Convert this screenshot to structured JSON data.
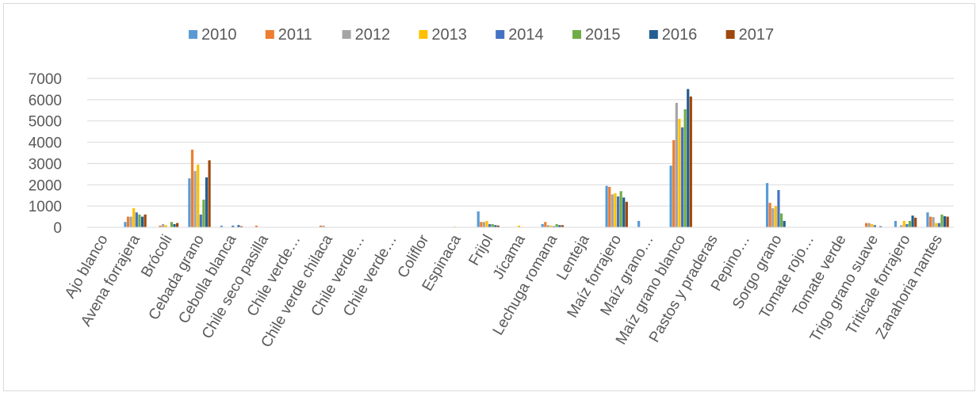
{
  "chart_data": {
    "type": "bar",
    "title": "",
    "xlabel": "",
    "ylabel": "",
    "ylim": [
      0,
      7000
    ],
    "yticks": [
      0,
      1000,
      2000,
      3000,
      4000,
      5000,
      6000,
      7000
    ],
    "grid": true,
    "legend_position": "top",
    "categories": [
      "Ajo blanco",
      "Avena forrajera",
      "Brócoli",
      "Cebada grano",
      "Cebolla blanca",
      "Chile seco pasilla",
      "Chile verde…",
      "Chile verde chilaca",
      "Chile verde…",
      "Chile verde…",
      "Coliflor",
      "Espinaca",
      "Frijol",
      "Jícama",
      "Lechuga romana",
      "Lenteja",
      "Maíz forrajero",
      "Maíz grano…",
      "Maíz grano blanco",
      "Pastos y praderas",
      "Pepino…",
      "Sorgo grano",
      "Tomate rojo…",
      "Tomate verde",
      "Trigo grano suave",
      "Triticale forrajero",
      "Zanahoria nantes"
    ],
    "series": [
      {
        "name": "2010",
        "color": "#5b9bd5",
        "values": [
          0,
          250,
          0,
          2300,
          80,
          0,
          0,
          0,
          0,
          0,
          0,
          0,
          750,
          0,
          150,
          0,
          1950,
          300,
          2900,
          0,
          0,
          2080,
          0,
          0,
          0,
          300,
          700
        ]
      },
      {
        "name": "2011",
        "color": "#ed7d31",
        "values": [
          0,
          500,
          80,
          3650,
          0,
          80,
          0,
          80,
          0,
          0,
          0,
          0,
          250,
          0,
          250,
          0,
          1900,
          0,
          4100,
          0,
          0,
          1150,
          0,
          0,
          200,
          0,
          500
        ]
      },
      {
        "name": "2012",
        "color": "#a5a5a5",
        "values": [
          0,
          500,
          150,
          2650,
          0,
          0,
          0,
          80,
          0,
          0,
          0,
          0,
          250,
          0,
          100,
          0,
          1550,
          0,
          5850,
          0,
          0,
          900,
          0,
          0,
          200,
          100,
          480
        ]
      },
      {
        "name": "2013",
        "color": "#ffc000",
        "values": [
          0,
          900,
          100,
          2950,
          0,
          0,
          0,
          0,
          0,
          0,
          0,
          30,
          300,
          80,
          80,
          0,
          1600,
          0,
          5100,
          0,
          0,
          1000,
          0,
          0,
          150,
          300,
          200
        ]
      },
      {
        "name": "2014",
        "color": "#4472c4",
        "values": [
          0,
          700,
          0,
          600,
          80,
          0,
          0,
          0,
          0,
          0,
          0,
          0,
          150,
          0,
          50,
          0,
          1450,
          0,
          4700,
          0,
          0,
          1750,
          0,
          0,
          100,
          150,
          200
        ]
      },
      {
        "name": "2015",
        "color": "#70ad47",
        "values": [
          0,
          600,
          250,
          1300,
          0,
          0,
          0,
          0,
          0,
          0,
          0,
          0,
          150,
          0,
          150,
          0,
          1700,
          0,
          5550,
          0,
          0,
          650,
          0,
          0,
          0,
          300,
          600
        ]
      },
      {
        "name": "2016",
        "color": "#255e91",
        "values": [
          0,
          500,
          150,
          2350,
          100,
          0,
          0,
          0,
          0,
          0,
          0,
          0,
          100,
          0,
          100,
          0,
          1400,
          0,
          6500,
          0,
          0,
          300,
          0,
          0,
          50,
          550,
          520
        ]
      },
      {
        "name": "2017",
        "color": "#9e480e",
        "values": [
          0,
          600,
          200,
          3150,
          50,
          0,
          0,
          0,
          0,
          0,
          0,
          0,
          80,
          0,
          100,
          0,
          1200,
          0,
          6150,
          0,
          0,
          0,
          0,
          0,
          0,
          450,
          500
        ]
      }
    ]
  }
}
